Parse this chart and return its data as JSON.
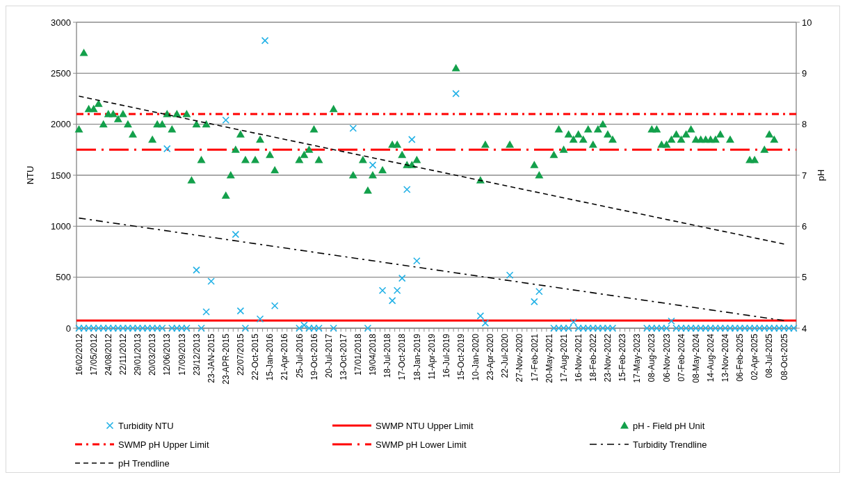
{
  "chart_data": {
    "type": "scatter",
    "ylabel": "NTU",
    "y2label": "pH",
    "categories": [
      "16/02/2012",
      null,
      null,
      "17/05/2012",
      null,
      null,
      "24/08/2012",
      null,
      null,
      "22/11/2012",
      null,
      null,
      "29/01/2013",
      null,
      null,
      "20/03/2013",
      null,
      null,
      "12/06/2013",
      null,
      null,
      "17/09/2013",
      null,
      null,
      "23/12/2013",
      null,
      null,
      "23-JAN-2015",
      null,
      null,
      "23-APR-2015",
      null,
      null,
      "22/07/2015",
      null,
      null,
      "22-Oct-2015",
      null,
      null,
      "15-Jan-2016",
      null,
      null,
      "21-Apr-2016",
      null,
      null,
      "25-Jul-2016",
      null,
      null,
      "19-Oct-2016",
      null,
      null,
      "20-Jul-2017",
      null,
      null,
      "13-Oct-2017",
      null,
      null,
      "17/01/2018",
      null,
      null,
      "19/04/2018",
      null,
      null,
      "18-Jul-2018",
      null,
      null,
      "17-Oct-2018",
      null,
      null,
      "18-Jan-2019",
      null,
      null,
      "11-Apr-2019",
      null,
      null,
      "16-Jul-2019",
      null,
      null,
      "15-Oct-2019",
      null,
      null,
      "10-Jan-2020",
      null,
      null,
      "23-Apr-2020",
      null,
      null,
      "22-Jul-2020",
      null,
      null,
      "27-Nov-2020",
      null,
      null,
      "17-Feb-2021",
      null,
      null,
      "20-May-2021",
      null,
      null,
      "17-Aug-2021",
      null,
      null,
      "16-Nov-2021",
      null,
      null,
      "18-Feb-2022",
      null,
      null,
      "23-Nov-2022",
      null,
      null,
      "15-Feb-2023",
      null,
      null,
      "17-May-2023",
      null,
      null,
      "08-Aug-2023",
      null,
      null,
      "06-Nov-2023",
      null,
      null,
      "07-Feb-2024",
      null,
      null,
      "08-May-2024",
      null,
      null,
      "14-Aug-2024",
      null,
      null,
      "13-Nov-2024",
      null,
      null,
      "06-Feb-2025",
      null,
      null,
      "02-Apr-2025",
      null,
      null,
      "08-Jul-2025",
      null,
      null,
      "08-Oct-2025",
      null,
      null
    ],
    "series": [
      {
        "name": "Turbidity NTU",
        "type": "scatter",
        "marker": "cross",
        "color": "#22b1e6",
        "values": [
          0,
          0,
          0,
          0,
          0,
          0,
          0,
          0,
          0,
          0,
          0,
          0,
          0,
          0,
          0,
          0,
          0,
          0,
          1760,
          0,
          0,
          0,
          0,
          null,
          570,
          0,
          160,
          460,
          null,
          null,
          2040,
          null,
          920,
          170,
          0,
          null,
          null,
          90,
          2820,
          null,
          220,
          null,
          null,
          null,
          null,
          0,
          30,
          0,
          0,
          0,
          null,
          null,
          0,
          null,
          null,
          null,
          1960,
          null,
          null,
          0,
          1600,
          null,
          370,
          null,
          270,
          370,
          490,
          1360,
          1850,
          660,
          null,
          null,
          null,
          null,
          null,
          null,
          null,
          2300,
          null,
          null,
          null,
          null,
          120,
          50,
          null,
          null,
          null,
          null,
          520,
          null,
          null,
          null,
          null,
          260,
          360,
          null,
          null,
          0,
          0,
          0,
          0,
          60,
          0,
          0,
          0,
          0,
          0,
          0,
          0,
          0,
          null,
          null,
          null,
          null,
          null,
          null,
          0,
          0,
          0,
          0,
          0,
          70,
          0,
          0,
          0,
          0,
          0,
          0,
          0,
          0,
          0,
          0,
          0,
          0,
          0,
          0,
          0,
          0,
          0,
          0,
          0,
          0,
          0,
          0,
          0,
          0,
          0
        ]
      },
      {
        "name": "pH - Field pH Unit",
        "type": "scatter",
        "marker": "triangle",
        "axis": "y2",
        "color": "#13a04b",
        "values": [
          7.9,
          9.4,
          8.3,
          8.3,
          8.4,
          8.0,
          8.2,
          8.2,
          8.1,
          8.2,
          8.0,
          7.8,
          null,
          null,
          null,
          7.7,
          8.0,
          8.0,
          8.2,
          7.9,
          8.2,
          null,
          8.2,
          6.9,
          8.0,
          7.3,
          8.0,
          null,
          null,
          null,
          6.6,
          7.0,
          7.5,
          7.8,
          7.3,
          null,
          7.3,
          7.7,
          null,
          7.4,
          7.1,
          null,
          null,
          null,
          null,
          7.3,
          7.4,
          7.5,
          7.9,
          7.3,
          null,
          null,
          8.3,
          null,
          null,
          null,
          7.0,
          null,
          7.3,
          6.7,
          7.0,
          null,
          7.1,
          null,
          7.6,
          7.6,
          7.4,
          7.2,
          7.2,
          7.3,
          null,
          null,
          null,
          null,
          null,
          null,
          null,
          9.1,
          null,
          null,
          null,
          null,
          6.9,
          7.6,
          null,
          null,
          null,
          null,
          7.6,
          null,
          null,
          null,
          null,
          7.2,
          7.0,
          null,
          null,
          7.4,
          7.9,
          7.5,
          7.8,
          7.7,
          7.8,
          7.7,
          7.9,
          7.6,
          7.9,
          8.0,
          7.8,
          7.7,
          null,
          null,
          null,
          null,
          null,
          null,
          null,
          7.9,
          7.9,
          7.6,
          7.6,
          7.7,
          7.8,
          7.7,
          7.8,
          7.9,
          7.7,
          7.7,
          7.7,
          7.7,
          7.7,
          7.8,
          null,
          7.7,
          null,
          null,
          null,
          7.3,
          7.3,
          null,
          7.5,
          7.8,
          7.7,
          null,
          null,
          null,
          null
        ]
      },
      {
        "name": "Turbidity Trendline",
        "type": "line",
        "line_style": "dashdot",
        "color": "#000000",
        "x": [
          "16/02/2012",
          "08-Oct-2025"
        ],
        "values": [
          1080,
          75
        ]
      },
      {
        "name": "pH Trendline",
        "type": "line",
        "line_style": "dashed",
        "axis": "y2",
        "color": "#000000",
        "x": [
          "16/02/2012",
          "08-Oct-2025"
        ],
        "values": [
          8.55,
          5.65
        ]
      }
    ],
    "ref_lines": [
      {
        "axis": "y",
        "value": 75,
        "label": "SWMP NTU Upper Limit",
        "color": "#ff0000",
        "line_style": "solid"
      },
      {
        "axis": "y2",
        "value": 8.2,
        "label": "SWMP pH Upper Limit",
        "color": "#ff0000",
        "line_style": "dashdot"
      },
      {
        "axis": "y2",
        "value": 7.5,
        "label": "SWMP pH Lower Limit",
        "color": "#ff0000",
        "line_style": "longdashdot"
      }
    ],
    "ylim": [
      0,
      3000
    ],
    "yticks": [
      0,
      500,
      1000,
      1500,
      2000,
      2500,
      3000
    ],
    "y2lim": [
      4,
      10
    ],
    "y2ticks": [
      4,
      5,
      6,
      7,
      8,
      9,
      10
    ],
    "grid": "y",
    "legend": "bottom"
  }
}
